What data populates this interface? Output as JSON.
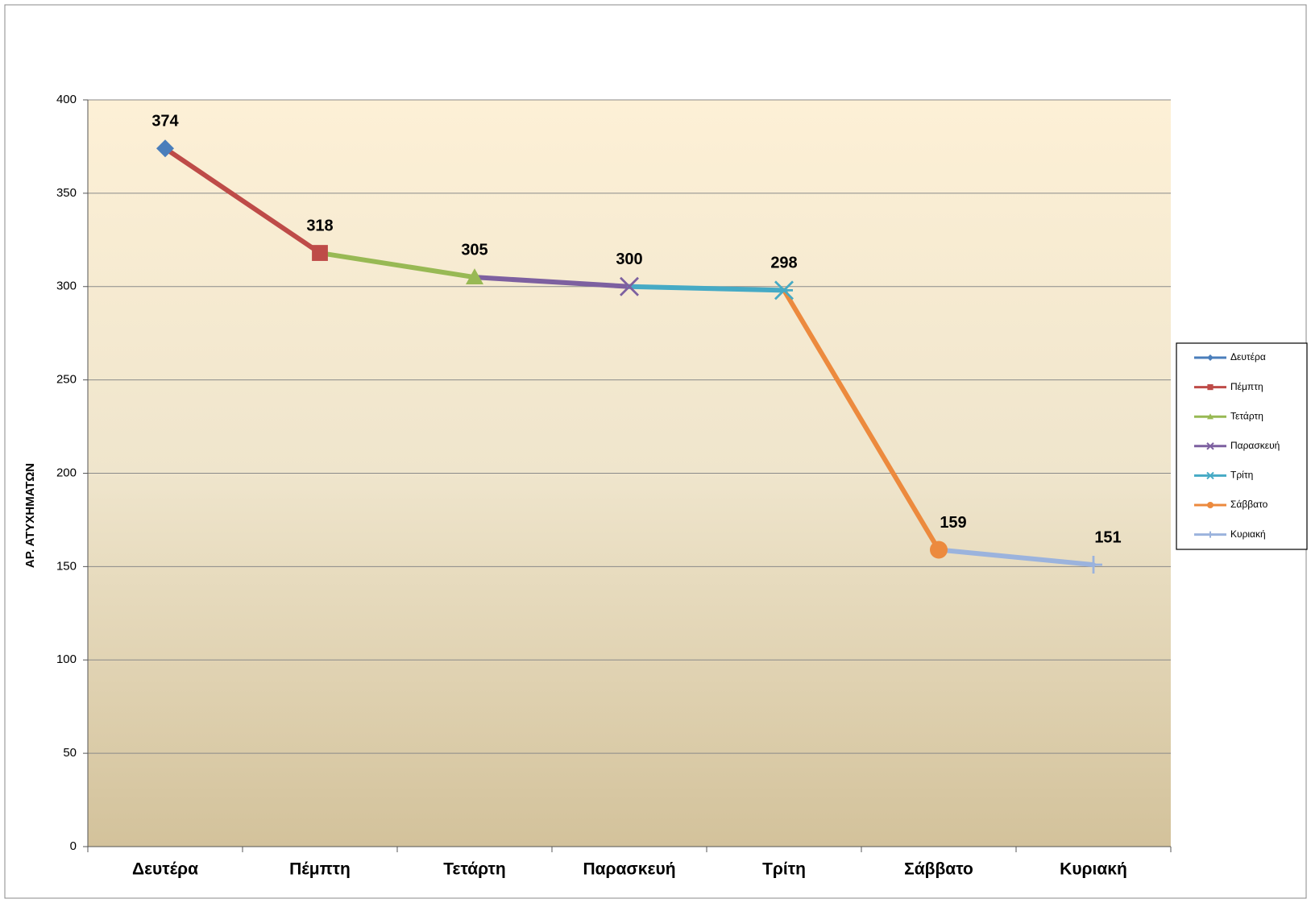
{
  "chart_data": {
    "type": "line",
    "y_label": "ΑΡ. ΑΤΥΧΗΜΑΤΩΝ",
    "categories": [
      "Δευτέρα",
      "Πέμπτη",
      "Τετάρτη",
      "Παρασκευή",
      "Τρίτη",
      "Σάββατο",
      "Κυριακή"
    ],
    "values": [
      374,
      318,
      305,
      300,
      298,
      159,
      151
    ],
    "series": [
      {
        "name": "Δευτέρα",
        "color": "#4a7ebb",
        "marker": "diamond"
      },
      {
        "name": "Πέμπτη",
        "color": "#be4b48",
        "marker": "square"
      },
      {
        "name": "Τετάρτη",
        "color": "#98b954",
        "marker": "triangle"
      },
      {
        "name": "Παρασκευή",
        "color": "#7d60a0",
        "marker": "x"
      },
      {
        "name": "Τρίτη",
        "color": "#46aac5",
        "marker": "star"
      },
      {
        "name": "Σάββατο",
        "color": "#ec8a3e",
        "marker": "circle"
      },
      {
        "name": "Κυριακή",
        "color": "#9bb3dd",
        "marker": "plus"
      }
    ],
    "ylim": [
      0,
      400
    ],
    "yticks": [
      0,
      50,
      100,
      150,
      200,
      250,
      300,
      350,
      400
    ],
    "grid": true,
    "legend": "right"
  }
}
